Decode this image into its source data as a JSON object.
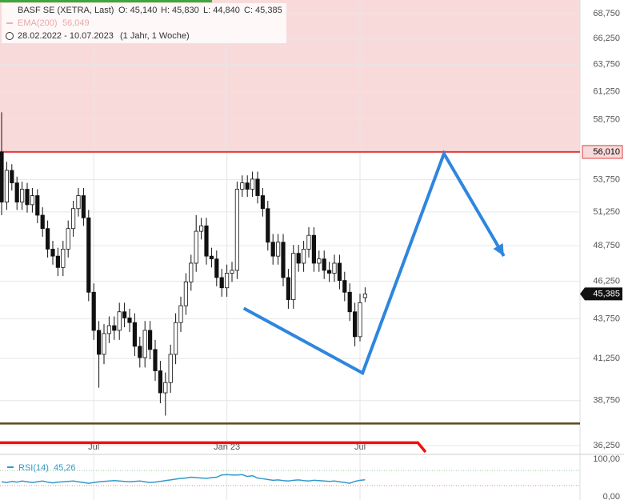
{
  "chart_data": {
    "type": "candlestick",
    "title": "BASF SE (XETRA, Last)",
    "header": {
      "open": "O: 45,140",
      "high": "H: 45,830",
      "low": "L: 44,840",
      "close": "C: 45,385",
      "ema_name": "EMA(200)",
      "ema_value": "56,049",
      "range": "28.02.2022 - 10.07.2023",
      "span": "(1 Jahr, 1 Woche)"
    },
    "x": [
      0,
      1,
      2,
      3,
      4,
      5,
      6,
      7,
      8,
      9,
      10,
      11,
      12,
      13,
      14,
      15,
      16,
      17,
      18,
      19,
      20,
      21,
      22,
      23,
      24,
      25,
      26,
      27,
      28,
      29,
      30,
      31,
      32,
      33,
      34,
      35,
      36,
      37,
      38,
      39,
      40,
      41,
      42,
      43,
      44,
      45,
      46,
      47,
      48,
      49,
      50,
      51,
      52,
      53,
      54,
      55,
      56,
      57,
      58,
      59,
      60,
      61,
      62,
      63,
      64,
      65,
      66,
      67,
      68,
      69,
      70,
      71
    ],
    "open": [
      56.0,
      52.0,
      54.5,
      53.5,
      52.0,
      53.0,
      51.8,
      52.5,
      51.0,
      50.0,
      48.5,
      48.0,
      47.2,
      48.5,
      50.0,
      51.5,
      52.5,
      50.8,
      45.5,
      43.0,
      41.5,
      42.8,
      43.3,
      43.0,
      44.2,
      43.8,
      43.5,
      42.0,
      41.3,
      43.0,
      41.8,
      40.5,
      39.2,
      39.8,
      41.5,
      43.5,
      44.6,
      46.2,
      47.5,
      49.8,
      50.2,
      48.0,
      47.8,
      46.5,
      45.8,
      46.8,
      47.0,
      53.0,
      53.5,
      53.0,
      53.8,
      52.5,
      51.5,
      49.0,
      48.0,
      49.0,
      46.5,
      45.0,
      48.2,
      47.5,
      48.5,
      49.5,
      47.5,
      47.8,
      47.0,
      46.8,
      47.5,
      46.3,
      45.5,
      44.2,
      42.6,
      45.14
    ],
    "high": [
      59.4,
      55.2,
      55.0,
      54.0,
      53.6,
      53.5,
      53.1,
      53.0,
      51.6,
      50.6,
      49.1,
      48.6,
      49.1,
      50.6,
      52.1,
      53.1,
      53.1,
      51.4,
      46.1,
      43.6,
      43.4,
      43.9,
      43.9,
      44.8,
      44.8,
      44.4,
      44.1,
      42.6,
      43.6,
      43.6,
      42.4,
      41.1,
      40.4,
      42.1,
      44.1,
      45.2,
      46.8,
      48.1,
      51.0,
      50.8,
      50.8,
      48.6,
      48.4,
      47.1,
      47.4,
      47.6,
      53.6,
      54.1,
      54.1,
      54.4,
      54.4,
      53.1,
      52.1,
      49.6,
      49.6,
      49.6,
      47.1,
      48.8,
      48.8,
      49.1,
      50.1,
      50.1,
      48.4,
      48.4,
      47.6,
      48.1,
      48.1,
      46.9,
      46.1,
      44.8,
      45.4,
      45.83
    ],
    "low": [
      51.0,
      51.4,
      52.9,
      51.4,
      51.4,
      51.2,
      51.2,
      50.4,
      49.4,
      47.9,
      47.4,
      46.6,
      46.6,
      47.9,
      49.4,
      50.9,
      50.2,
      44.9,
      42.4,
      39.5,
      40.9,
      42.2,
      42.4,
      42.4,
      43.2,
      42.9,
      41.4,
      40.7,
      40.7,
      41.2,
      39.9,
      38.6,
      37.9,
      39.2,
      40.9,
      42.9,
      44.0,
      45.6,
      46.9,
      49.2,
      47.4,
      47.2,
      45.9,
      45.2,
      45.2,
      46.2,
      46.4,
      52.4,
      52.4,
      52.4,
      51.9,
      50.9,
      48.4,
      47.4,
      47.4,
      45.9,
      44.4,
      44.4,
      46.9,
      46.9,
      47.9,
      46.9,
      46.9,
      46.4,
      46.2,
      46.2,
      45.7,
      44.9,
      43.6,
      42.0,
      42.3,
      44.84
    ],
    "close": [
      52.0,
      54.5,
      53.5,
      52.0,
      53.0,
      51.8,
      52.5,
      51.0,
      50.0,
      48.5,
      48.0,
      47.2,
      48.5,
      50.0,
      51.5,
      52.5,
      50.8,
      45.5,
      43.0,
      41.5,
      42.8,
      43.3,
      43.0,
      44.2,
      43.8,
      43.5,
      42.0,
      41.3,
      43.0,
      41.8,
      40.5,
      39.2,
      39.8,
      41.5,
      43.5,
      44.6,
      46.2,
      47.5,
      49.8,
      50.2,
      48.0,
      47.8,
      46.5,
      45.8,
      46.8,
      47.0,
      53.0,
      53.5,
      53.0,
      53.8,
      52.5,
      51.5,
      49.0,
      48.0,
      49.0,
      46.5,
      45.0,
      48.2,
      47.5,
      48.5,
      49.5,
      47.5,
      47.8,
      47.0,
      46.8,
      47.5,
      46.3,
      45.5,
      44.2,
      42.6,
      44.8,
      45.385
    ],
    "last_label": "45,385",
    "xlim": [
      -0.3125,
      112.97
    ],
    "log_y": true,
    "ylim": [
      35.91,
      70.15
    ],
    "yticks": [
      {
        "value": 68.75,
        "label": "68,750"
      },
      {
        "value": 66.25,
        "label": "66,250"
      },
      {
        "value": 63.75,
        "label": "63,750"
      },
      {
        "value": 61.25,
        "label": "61,250"
      },
      {
        "value": 58.75,
        "label": "58,750"
      },
      {
        "value": 53.75,
        "label": "53,750"
      },
      {
        "value": 51.25,
        "label": "51,250"
      },
      {
        "value": 48.75,
        "label": "48,750"
      },
      {
        "value": 46.25,
        "label": "46,250"
      },
      {
        "value": 43.75,
        "label": "43,750"
      },
      {
        "value": 41.25,
        "label": "41,250"
      },
      {
        "value": 38.75,
        "label": "38,750"
      },
      {
        "value": 36.25,
        "label": "36,250"
      }
    ],
    "xticks": [
      {
        "value": 18,
        "label": "Jul"
      },
      {
        "value": 44,
        "label": "Jan 23"
      },
      {
        "value": 70,
        "label": "Jul"
      }
    ],
    "zone": {
      "value": 56.01,
      "label": "56,010",
      "color": "#e03c3c",
      "fill": "#f9dada"
    },
    "support": {
      "value": 37.46,
      "color": "#5a4a1a"
    },
    "stop_line": {
      "x": [
        -0.3125,
        81.3,
        82.8
      ],
      "y": [
        36.41,
        36.41,
        35.91
      ],
      "color": "#ee1111"
    },
    "drawing": {
      "x": [
        47.3,
        70.5,
        86.4,
        98.1
      ],
      "y": [
        44.43,
        40.37,
        55.87,
        48.01
      ],
      "color": "#2e86de"
    },
    "rsi": {
      "name": "RSI(14)",
      "value_label": "45,26",
      "color": "#3399cc",
      "ylim": [
        0,
        100
      ],
      "yticks": [
        {
          "value": 100,
          "label": "100,00"
        },
        {
          "value": 0,
          "label": "0,00"
        }
      ],
      "guides": [
        70,
        30
      ],
      "values": [
        40,
        38,
        41,
        39,
        42,
        40,
        38,
        40,
        42,
        39,
        37,
        39,
        40,
        41,
        42,
        40,
        38,
        36,
        38,
        40,
        41,
        42,
        43,
        42,
        41,
        40,
        41,
        42,
        40,
        38,
        39,
        41,
        43,
        45,
        47,
        49,
        50,
        52,
        51,
        50,
        49,
        51,
        52,
        58,
        59,
        58,
        58,
        59,
        54,
        56,
        50,
        48,
        46,
        44,
        45,
        43,
        42,
        44,
        45,
        43,
        42,
        44,
        43,
        42,
        41,
        42,
        40,
        38,
        36,
        41,
        44,
        45.26
      ]
    }
  }
}
